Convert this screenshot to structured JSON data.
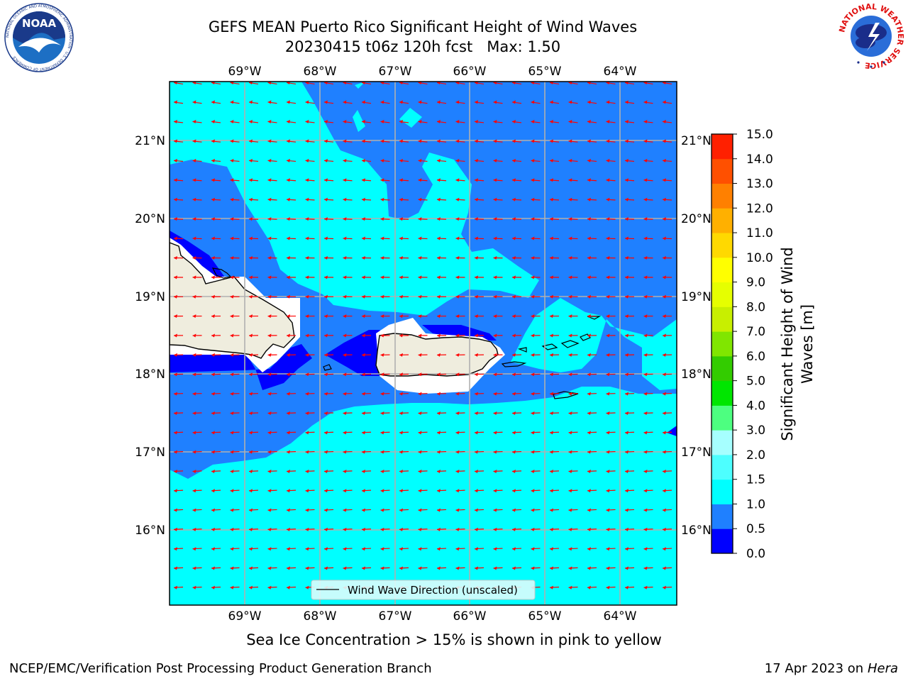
{
  "header": {
    "title": "GEFS MEAN Puerto Rico Significant Height of Wind Waves",
    "subtitle": "20230415 t06z 120h fcst   Max: 1.50"
  },
  "logos": {
    "left": "NOAA",
    "left_ring": "NATIONAL OCEANIC AND ATMOSPHERIC ADMINISTRATION · U.S. DEPARTMENT OF COMMERCE",
    "right": "NATIONAL WEATHER SERVICE"
  },
  "map": {
    "lon_labels": [
      "69°W",
      "68°W",
      "67°W",
      "66°W",
      "65°W",
      "64°W"
    ],
    "lat_labels": [
      "21°N",
      "20°N",
      "19°N",
      "18°N",
      "17°N",
      "16°N"
    ],
    "legend_label": "Wind Wave Direction (unscaled)",
    "colors": {
      "wave_0_0.5": "#0000ff",
      "wave_0.5_1.0": "#1f80ff",
      "wave_1.0_1.5": "#00ffff",
      "land": "#efedde",
      "arrow": "#ff0000",
      "grid": "#b0b0b0"
    }
  },
  "colorbar": {
    "label": "Significant Height of Wind Waves [m]",
    "ticks": [
      "0.0",
      "0.5",
      "1.0",
      "1.5",
      "2.0",
      "3.0",
      "4.0",
      "5.0",
      "6.0",
      "7.0",
      "8.0",
      "9.0",
      "10.0",
      "11.0",
      "12.0",
      "13.0",
      "14.0",
      "15.0"
    ],
    "colors": [
      "#0000ff",
      "#1f80ff",
      "#00ffff",
      "#4dffff",
      "#a6ffff",
      "#4dff80",
      "#00e600",
      "#33cc00",
      "#80e600",
      "#c8ef00",
      "#e6ff00",
      "#ffff00",
      "#ffd900",
      "#ffb000",
      "#ff8000",
      "#ff5000",
      "#ff2000"
    ]
  },
  "footer": {
    "note": "Sea Ice Concentration > 15% is shown in pink to yellow",
    "credit": "NCEP/EMC/Verification Post Processing Product Generation Branch",
    "date": "17 Apr 2023 on ",
    "machine": "Hera"
  }
}
